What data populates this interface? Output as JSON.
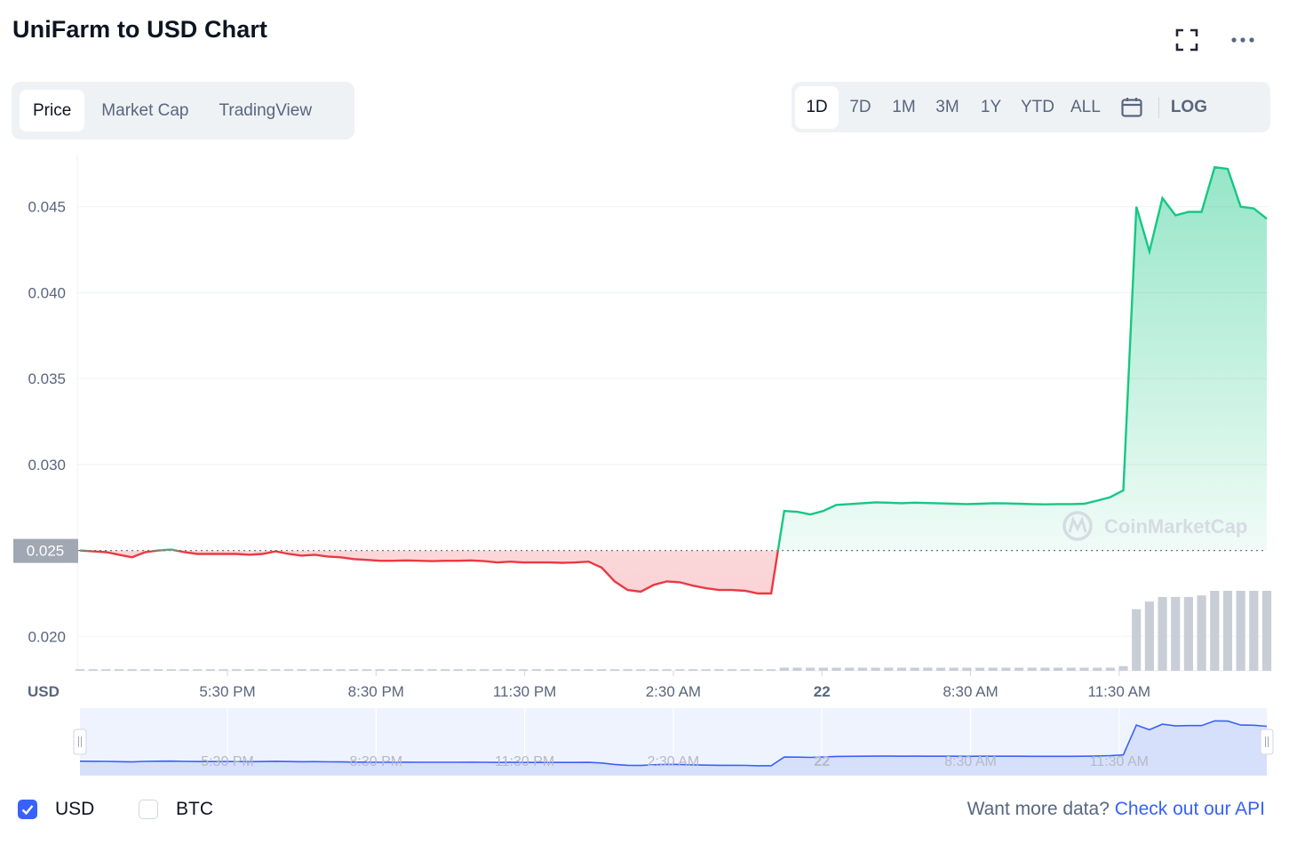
{
  "header": {
    "title": "UniFarm to USD Chart"
  },
  "tabs": [
    {
      "label": "Price",
      "active": true
    },
    {
      "label": "Market Cap",
      "active": false
    },
    {
      "label": "TradingView",
      "active": false
    }
  ],
  "ranges": [
    {
      "label": "1D",
      "active": true
    },
    {
      "label": "7D",
      "active": false
    },
    {
      "label": "1M",
      "active": false
    },
    {
      "label": "3M",
      "active": false
    },
    {
      "label": "1Y",
      "active": false
    },
    {
      "label": "YTD",
      "active": false
    },
    {
      "label": "ALL",
      "active": false
    }
  ],
  "log_label": "LOG",
  "icons": {
    "expand": "fullscreen-icon",
    "more": "more-options-icon",
    "calendar": "calendar-icon"
  },
  "colors": {
    "up": "#16c784",
    "down": "#ea3943",
    "accent": "#3861fb",
    "grid": "#eff2f5",
    "text_muted": "#58667e"
  },
  "chart_data": {
    "type": "line",
    "currency_label": "USD",
    "ylim": [
      0.018,
      0.0485
    ],
    "y_ticks": [
      {
        "value": 0.045,
        "label": "0.045"
      },
      {
        "value": 0.04,
        "label": "0.040"
      },
      {
        "value": 0.035,
        "label": "0.035"
      },
      {
        "value": 0.03,
        "label": "0.030"
      },
      {
        "value": 0.02,
        "label": "0.020"
      }
    ],
    "x_ticks": [
      {
        "label": "5:30 PM"
      },
      {
        "label": "8:30 PM"
      },
      {
        "label": "11:30 PM"
      },
      {
        "label": "2:30 AM"
      },
      {
        "label": "22",
        "bold": true
      },
      {
        "label": "8:30 AM"
      },
      {
        "label": "11:30 AM"
      }
    ],
    "baseline": {
      "value": 0.025,
      "label": "0.025"
    },
    "watermark": "CoinMarketCap",
    "series": [
      {
        "values": [
          0.025,
          0.02495,
          0.0249,
          0.02475,
          0.0246,
          0.0249,
          0.025,
          0.02505,
          0.0249,
          0.0248,
          0.0248,
          0.0248,
          0.0248,
          0.02475,
          0.0248,
          0.02495,
          0.0248,
          0.0247,
          0.02475,
          0.02465,
          0.0246,
          0.0245,
          0.02445,
          0.0244,
          0.0244,
          0.02442,
          0.0244,
          0.02438,
          0.0244,
          0.0244,
          0.02442,
          0.02438,
          0.0243,
          0.02435,
          0.0243,
          0.0243,
          0.0243,
          0.02428,
          0.0243,
          0.02435,
          0.024,
          0.0232,
          0.0227,
          0.0226,
          0.023,
          0.0232,
          0.02315,
          0.02295,
          0.0228,
          0.0227,
          0.0227,
          0.02265,
          0.0225,
          0.0225,
          0.0273,
          0.02725,
          0.0271,
          0.0273,
          0.02765,
          0.0277,
          0.02775,
          0.0278,
          0.02778,
          0.02775,
          0.02778,
          0.02776,
          0.02774,
          0.02772,
          0.0277,
          0.02772,
          0.02775,
          0.02774,
          0.02772,
          0.0277,
          0.02768,
          0.0277,
          0.0277,
          0.02772,
          0.0279,
          0.0281,
          0.0285,
          0.045,
          0.0424,
          0.0455,
          0.0445,
          0.0447,
          0.0447,
          0.0473,
          0.0472,
          0.045,
          0.0449,
          0.0443
        ]
      }
    ],
    "volume": [
      1,
      1,
      1,
      1,
      1,
      1,
      1,
      1,
      1,
      1,
      1,
      1,
      1,
      1,
      1,
      1,
      1,
      1,
      1,
      1,
      1,
      1,
      1,
      1,
      1,
      1,
      1,
      1,
      1,
      1,
      1,
      1,
      1,
      1,
      1,
      1,
      1,
      1,
      1,
      1,
      1,
      1,
      1,
      1,
      1,
      1,
      1,
      1,
      1,
      1,
      1,
      1,
      1,
      1,
      2,
      2,
      2,
      2,
      2,
      2,
      2,
      2,
      2,
      2,
      2,
      2,
      2,
      2,
      2,
      2,
      2,
      2,
      2,
      2,
      2,
      2,
      2,
      2,
      2,
      2,
      3,
      40,
      45,
      48,
      48,
      48,
      49,
      52,
      52,
      52,
      52,
      52
    ],
    "navigator": {
      "x_ticks": [
        "5:30 PM",
        "8:30 PM",
        "11:30 PM",
        "2:30 AM",
        "22",
        "8:30 AM",
        "11:30 AM"
      ]
    }
  },
  "footer": {
    "currencies": [
      {
        "label": "USD",
        "checked": true
      },
      {
        "label": "BTC",
        "checked": false
      }
    ],
    "api_prompt": "Want more data?",
    "api_link": "Check out our API"
  }
}
